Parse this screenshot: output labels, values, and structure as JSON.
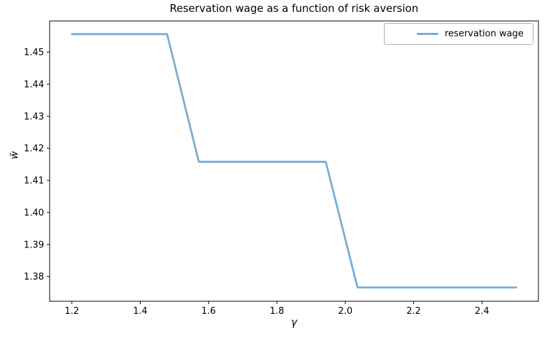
{
  "figure": {
    "title": "Reservation wage as a function of risk aversion",
    "xlabel": "γ",
    "ylabel": "w̄"
  },
  "legend": {
    "entries": [
      {
        "label": "reservation wage"
      }
    ]
  },
  "colors": {
    "line": "#78add2",
    "spine": "#000000",
    "text": "#000000",
    "legend_border": "#b0b0b0",
    "background": "#ffffff"
  },
  "chart_data": {
    "type": "line",
    "title": "Reservation wage as a function of risk aversion",
    "xlabel": "γ",
    "ylabel": "w̄",
    "legend_entries": [
      "reservation wage"
    ],
    "legend_position": "upper right",
    "grid": false,
    "xlim": [
      1.135,
      2.565
    ],
    "ylim": [
      1.3723,
      1.4597
    ],
    "series": [
      {
        "name": "reservation wage",
        "x": [
          1.2,
          1.2929,
          1.3857,
          1.4786,
          1.5714,
          1.6643,
          1.7571,
          1.85,
          1.9429,
          2.0357,
          2.1286,
          2.2214,
          2.3143,
          2.4071,
          2.5
        ],
        "values": [
          1.4556,
          1.4556,
          1.4556,
          1.4556,
          1.4158,
          1.4158,
          1.4158,
          1.4158,
          1.4158,
          1.3766,
          1.3766,
          1.3766,
          1.3766,
          1.3766,
          1.3766
        ]
      }
    ],
    "xticks": {
      "values": [
        1.2,
        1.4,
        1.6,
        1.8,
        2.0,
        2.2,
        2.4
      ],
      "labels": [
        "1.2",
        "1.4",
        "1.6",
        "1.8",
        "2.0",
        "2.2",
        "2.4"
      ]
    },
    "yticks": {
      "values": [
        1.38,
        1.39,
        1.4,
        1.41,
        1.42,
        1.43,
        1.44,
        1.45
      ],
      "labels": [
        "1.38",
        "1.39",
        "1.40",
        "1.41",
        "1.42",
        "1.43",
        "1.44",
        "1.45"
      ]
    }
  }
}
